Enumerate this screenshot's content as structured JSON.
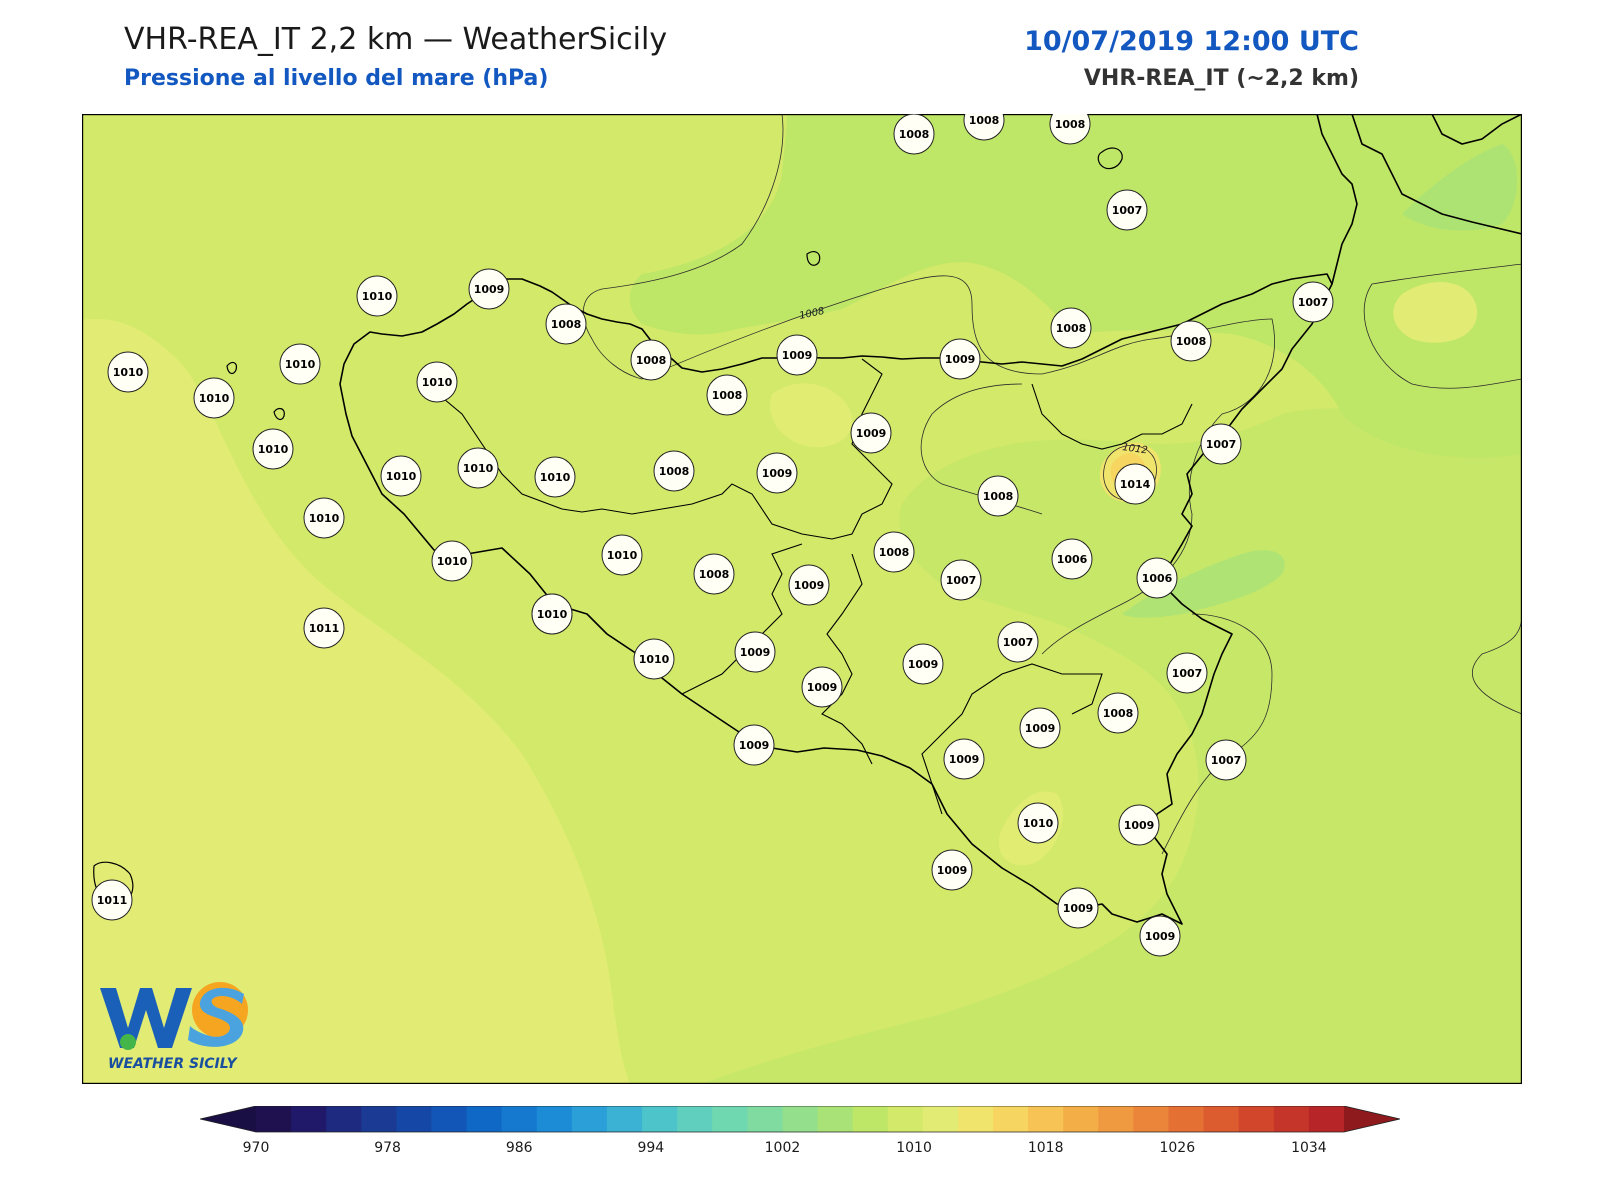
{
  "header": {
    "title": "VHR-REA_IT 2,2 km — WeatherSicily",
    "subtitle": "Pressione al livello del mare (hPa)",
    "datetime": "10/07/2019 12:00 UTC",
    "model": "VHR-REA_IT (~2,2 km)"
  },
  "logo": {
    "text": "WEATHER SICILY",
    "initials": "WS"
  },
  "contour_labels": [
    "1008",
    "1012"
  ],
  "stations": [
    {
      "value": "1008"
    },
    {
      "value": "1008"
    },
    {
      "value": "1008"
    },
    {
      "value": "1007"
    },
    {
      "value": "1010"
    },
    {
      "value": "1009"
    },
    {
      "value": "1008"
    },
    {
      "value": "1007"
    },
    {
      "value": "1010"
    },
    {
      "value": "1010"
    },
    {
      "value": "1010"
    },
    {
      "value": "1008"
    },
    {
      "value": "1009"
    },
    {
      "value": "1009"
    },
    {
      "value": "1008"
    },
    {
      "value": "1008"
    },
    {
      "value": "1010"
    },
    {
      "value": "1008"
    },
    {
      "value": "1010"
    },
    {
      "value": "1007"
    },
    {
      "value": "1010"
    },
    {
      "value": "1010"
    },
    {
      "value": "1010"
    },
    {
      "value": "1011"
    },
    {
      "value": "1008"
    },
    {
      "value": "1009"
    },
    {
      "value": "1009"
    },
    {
      "value": "1008"
    },
    {
      "value": "1014"
    },
    {
      "value": "1010"
    },
    {
      "value": "1010"
    },
    {
      "value": "1010"
    },
    {
      "value": "1010"
    },
    {
      "value": "1008"
    },
    {
      "value": "1009"
    },
    {
      "value": "1008"
    },
    {
      "value": "1007"
    },
    {
      "value": "1006"
    },
    {
      "value": "1006"
    },
    {
      "value": "1010"
    },
    {
      "value": "1010"
    },
    {
      "value": "1007"
    },
    {
      "value": "1009"
    },
    {
      "value": "1009"
    },
    {
      "value": "1009"
    },
    {
      "value": "1007"
    },
    {
      "value": "1009"
    },
    {
      "value": "1008"
    },
    {
      "value": "1007"
    },
    {
      "value": "1009"
    },
    {
      "value": "1009"
    },
    {
      "value": "1010"
    },
    {
      "value": "1009"
    },
    {
      "value": "1009"
    },
    {
      "value": "1011"
    },
    {
      "value": "1009"
    },
    {
      "value": "1009"
    }
  ],
  "colorbar": {
    "ticks": [
      "970",
      "978",
      "986",
      "994",
      "1002",
      "1010",
      "1018",
      "1026",
      "1034"
    ],
    "colors": [
      "#1f1150",
      "#20196a",
      "#1e2a80",
      "#1a3a93",
      "#1548a6",
      "#1257b8",
      "#0f68c6",
      "#1579cf",
      "#1d8cd6",
      "#2b9fd8",
      "#3bb2d4",
      "#4dc4c9",
      "#60cfbe",
      "#70d8b0",
      "#80dba0",
      "#93df8c",
      "#a9e276",
      "#bee667",
      "#d3e96a",
      "#e2ec74",
      "#f0e46c",
      "#f7d561",
      "#f6c354",
      "#f3ae48",
      "#ef9a40",
      "#ea853a",
      "#e47034",
      "#dc5b2f",
      "#d2472c",
      "#c6352a",
      "#b82528"
    ],
    "under_color": "#1a0f45",
    "over_color": "#8e1a1e"
  }
}
